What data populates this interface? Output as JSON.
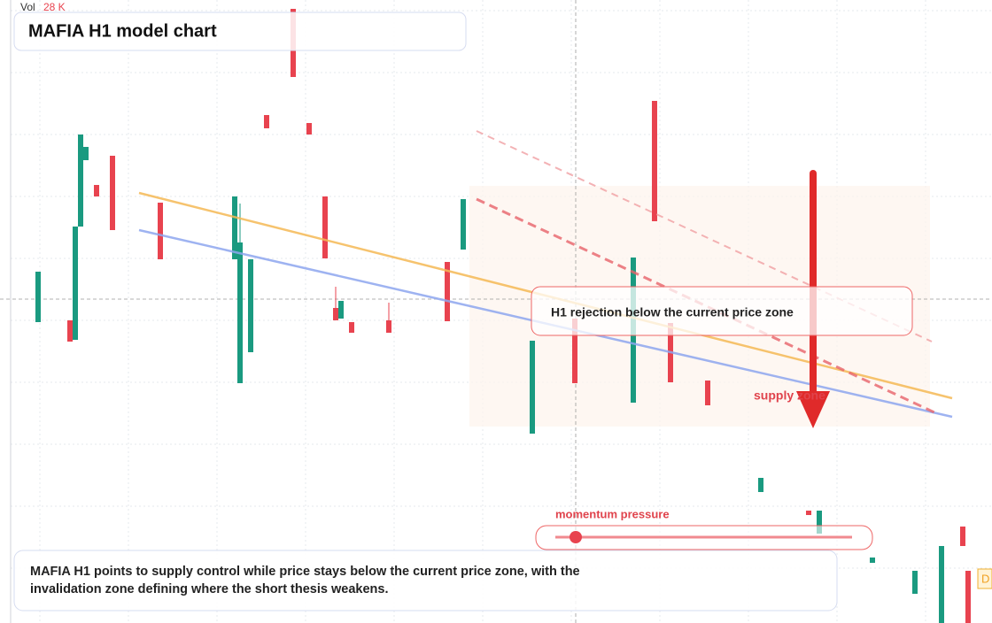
{
  "chart_data": {
    "type": "candlestick",
    "title": "MAFIA H1 model chart",
    "volume_label": "Vol",
    "volume_value": "28 K",
    "annotation": "H1 rejection below the current price zone",
    "zone_label": "supply zone",
    "indicator_label": "momentum pressure",
    "caption": "MAFIA H1 points to supply control while price stays below the current price zone, with the invalidation zone defining where the short thesis weakens.",
    "edge_label": "D",
    "up_color": "#1a9a80",
    "down_color": "#e8434f",
    "xlim": [
      0,
      186
    ],
    "ylim": [
      99.6,
      170
    ],
    "grid": true,
    "x": [
      7,
      13,
      14,
      15,
      16,
      18,
      21,
      30,
      44,
      45,
      47,
      50,
      55,
      58,
      61,
      63,
      64,
      66,
      73,
      84,
      87,
      100,
      108,
      119,
      123,
      126,
      133,
      143,
      152,
      154,
      164,
      172,
      177,
      181,
      182
    ],
    "open": [
      133.6,
      133.8,
      131.6,
      144.4,
      151.9,
      149.1,
      152.4,
      147.1,
      140.7,
      126.7,
      130.2,
      157.0,
      169.0,
      156.1,
      147.8,
      135.2,
      134.0,
      133.6,
      133.8,
      140.4,
      141.8,
      121.0,
      134.0,
      124.5,
      158.6,
      133.5,
      127.0,
      114.4,
      112.3,
      109.7,
      106.4,
      102.9,
      99.6,
      110.5,
      105.5
    ],
    "high": [
      139.3,
      133.8,
      144.4,
      154.8,
      153.4,
      149.1,
      152.4,
      147.1,
      147.8,
      147.0,
      140.7,
      157.0,
      169.0,
      156.1,
      147.8,
      137.6,
      136.0,
      133.6,
      135.8,
      140.4,
      147.5,
      131.5,
      134.0,
      140.9,
      158.6,
      133.5,
      127.0,
      116.0,
      112.3,
      112.3,
      107.0,
      105.5,
      108.3,
      110.5,
      105.5
    ],
    "low": [
      133.6,
      131.4,
      131.6,
      144.4,
      151.9,
      147.8,
      144.0,
      140.7,
      140.7,
      126.7,
      130.2,
      155.5,
      161.3,
      154.8,
      140.8,
      133.8,
      134.0,
      132.4,
      132.4,
      133.7,
      141.8,
      121.0,
      126.7,
      124.5,
      145.0,
      126.8,
      124.2,
      114.4,
      111.8,
      109.7,
      106.4,
      102.9,
      99.6,
      108.3,
      99.6
    ],
    "close": [
      139.3,
      131.4,
      144.4,
      154.8,
      153.4,
      147.8,
      144.0,
      140.7,
      147.8,
      142.6,
      140.7,
      155.5,
      161.3,
      154.8,
      140.8,
      133.8,
      136.0,
      132.4,
      132.4,
      133.7,
      147.5,
      131.5,
      126.7,
      140.9,
      145.0,
      126.8,
      124.2,
      116.0,
      111.8,
      112.3,
      107.0,
      105.5,
      108.3,
      108.3,
      99.6
    ]
  }
}
